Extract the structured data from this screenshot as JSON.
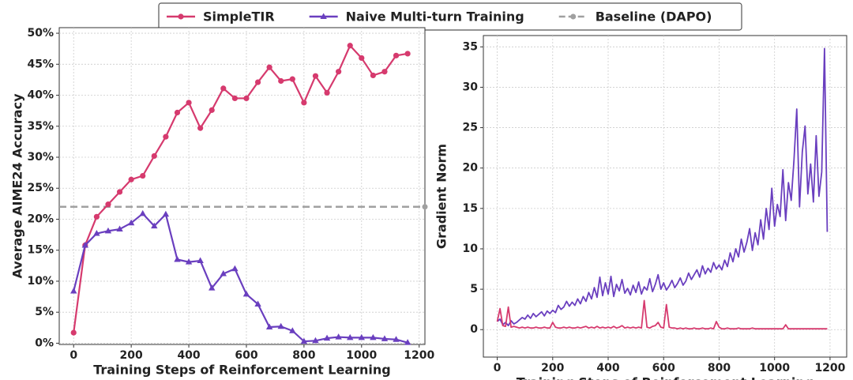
{
  "chart_data": [
    {
      "type": "line",
      "xlabel": "Training Steps of Reinforcement Learning",
      "ylabel": "Average AIME24 Accuracy",
      "legend": "upper center",
      "grid": true,
      "x": [
        0,
        40,
        80,
        120,
        160,
        200,
        240,
        280,
        320,
        360,
        400,
        440,
        480,
        520,
        560,
        600,
        640,
        680,
        720,
        760,
        800,
        840,
        880,
        920,
        960,
        1000,
        1040,
        1080,
        1120,
        1160
      ],
      "series": [
        {
          "name": "SimpleTIR",
          "color": "#d63a6e",
          "marker": "circle",
          "values": [
            1.7,
            15.8,
            20.4,
            22.4,
            24.4,
            26.4,
            27.0,
            30.2,
            33.3,
            37.2,
            38.8,
            34.7,
            37.6,
            41.1,
            39.5,
            39.5,
            42.1,
            44.5,
            42.3,
            42.6,
            38.8,
            43.1,
            40.4,
            43.8,
            48.0,
            46.0,
            43.2,
            43.8,
            46.4,
            46.7
          ]
        },
        {
          "name": "Naive Multi-turn Training",
          "color": "#6a3fbf",
          "marker": "triangle",
          "values": [
            8.4,
            15.8,
            17.7,
            18.1,
            18.4,
            19.4,
            20.9,
            18.9,
            20.8,
            13.5,
            13.1,
            13.3,
            8.9,
            11.2,
            12.0,
            7.9,
            6.3,
            2.6,
            2.7,
            2.0,
            0.3,
            0.4,
            0.8,
            1.0,
            0.9,
            0.9,
            0.9,
            0.7,
            0.6,
            0.1
          ]
        }
      ],
      "baseline": {
        "name": "Baseline (DAPO)",
        "color": "#a0a0a0",
        "value": 22
      },
      "xlim": [
        -50,
        1220
      ],
      "xticks": [
        0,
        200,
        400,
        600,
        800,
        1000,
        1200
      ],
      "ylim": [
        -0.2,
        50.9
      ],
      "yticks": [
        {
          "value": 0,
          "label": "0%"
        },
        {
          "value": 5,
          "label": "5%"
        },
        {
          "value": 10,
          "label": "10%"
        },
        {
          "value": 15,
          "label": "15%"
        },
        {
          "value": 20,
          "label": "20%"
        },
        {
          "value": 25,
          "label": "25%"
        },
        {
          "value": 30,
          "label": "30%"
        },
        {
          "value": 35,
          "label": "35%"
        },
        {
          "value": 40,
          "label": "40%"
        },
        {
          "value": 45,
          "label": "45%"
        },
        {
          "value": 50,
          "label": "50%"
        }
      ]
    },
    {
      "type": "line",
      "xlabel": "Training Steps of Reinforcement Learning",
      "ylabel": "Gradient Norm",
      "grid": true,
      "x": [
        0,
        10,
        20,
        30,
        40,
        50,
        60,
        70,
        80,
        90,
        100,
        110,
        120,
        130,
        140,
        150,
        160,
        170,
        180,
        190,
        200,
        210,
        220,
        230,
        240,
        250,
        260,
        270,
        280,
        290,
        300,
        310,
        320,
        330,
        340,
        350,
        360,
        370,
        380,
        390,
        400,
        410,
        420,
        430,
        440,
        450,
        460,
        470,
        480,
        490,
        500,
        510,
        520,
        530,
        540,
        550,
        560,
        570,
        580,
        590,
        600,
        610,
        620,
        630,
        640,
        650,
        660,
        670,
        680,
        690,
        700,
        710,
        720,
        730,
        740,
        750,
        760,
        770,
        780,
        790,
        800,
        810,
        820,
        830,
        840,
        850,
        860,
        870,
        880,
        890,
        900,
        910,
        920,
        930,
        940,
        950,
        960,
        970,
        980,
        990,
        1000,
        1010,
        1020,
        1030,
        1040,
        1050,
        1060,
        1070,
        1080,
        1090,
        1100,
        1110,
        1120,
        1130,
        1140,
        1150,
        1160,
        1170,
        1180,
        1190
      ],
      "series": [
        {
          "name": "Naive Multi-turn Training",
          "color": "#6a3fbf",
          "values": [
            1.0,
            1.3,
            0.6,
            0.9,
            0.5,
            1.1,
            0.7,
            0.9,
            1.2,
            1.5,
            1.3,
            1.8,
            1.4,
            2.0,
            1.6,
            1.9,
            2.2,
            1.7,
            2.3,
            2.0,
            2.4,
            2.1,
            3.0,
            2.5,
            2.8,
            3.5,
            2.9,
            3.4,
            3.0,
            3.8,
            3.2,
            4.1,
            3.5,
            4.6,
            3.8,
            5.2,
            4.0,
            6.5,
            4.2,
            5.8,
            4.4,
            6.6,
            4.1,
            5.6,
            4.8,
            6.2,
            4.5,
            5.1,
            4.3,
            5.5,
            4.6,
            5.9,
            4.4,
            5.3,
            4.9,
            6.3,
            4.7,
            5.6,
            6.8,
            5.0,
            5.8,
            4.9,
            5.4,
            6.1,
            5.2,
            5.7,
            6.4,
            5.5,
            6.0,
            7.0,
            6.2,
            6.8,
            7.4,
            6.5,
            7.9,
            6.9,
            7.6,
            7.1,
            8.3,
            7.5,
            8.0,
            7.4,
            8.6,
            7.8,
            9.5,
            8.4,
            10.0,
            9.0,
            11.2,
            9.6,
            10.8,
            12.5,
            9.8,
            12.0,
            10.5,
            13.6,
            11.2,
            15.0,
            12.4,
            17.5,
            12.8,
            15.5,
            14.0,
            19.8,
            13.5,
            18.2,
            16.0,
            21.0,
            27.3,
            15.2,
            22.0,
            25.2,
            16.8,
            20.5,
            15.8,
            24.0,
            16.5,
            19.5,
            34.8,
            12.1
          ]
        },
        {
          "name": "SimpleTIR",
          "color": "#d63a6e",
          "values": [
            1.0,
            2.6,
            0.5,
            0.4,
            2.8,
            0.3,
            0.4,
            0.3,
            0.2,
            0.3,
            0.2,
            0.3,
            0.2,
            0.2,
            0.3,
            0.2,
            0.2,
            0.3,
            0.2,
            0.2,
            0.9,
            0.3,
            0.2,
            0.2,
            0.3,
            0.2,
            0.3,
            0.2,
            0.2,
            0.3,
            0.2,
            0.3,
            0.4,
            0.2,
            0.3,
            0.2,
            0.4,
            0.2,
            0.3,
            0.2,
            0.3,
            0.2,
            0.4,
            0.2,
            0.3,
            0.5,
            0.2,
            0.3,
            0.2,
            0.3,
            0.2,
            0.3,
            0.2,
            3.6,
            0.3,
            0.2,
            0.4,
            0.5,
            0.9,
            0.3,
            0.2,
            3.1,
            0.3,
            0.2,
            0.2,
            0.1,
            0.2,
            0.1,
            0.2,
            0.1,
            0.1,
            0.2,
            0.1,
            0.1,
            0.2,
            0.1,
            0.1,
            0.2,
            0.1,
            1.0,
            0.3,
            0.1,
            0.1,
            0.2,
            0.1,
            0.1,
            0.1,
            0.2,
            0.1,
            0.1,
            0.1,
            0.1,
            0.2,
            0.1,
            0.1,
            0.1,
            0.1,
            0.1,
            0.1,
            0.1,
            0.1,
            0.1,
            0.1,
            0.1,
            0.6,
            0.1,
            0.1,
            0.1,
            0.1,
            0.1,
            0.1,
            0.1,
            0.1,
            0.1,
            0.1,
            0.1,
            0.1,
            0.1,
            0.1,
            0.1
          ]
        }
      ],
      "xlim": [
        -50,
        1260
      ],
      "xticks": [
        0,
        200,
        400,
        600,
        800,
        1000,
        1200
      ],
      "ylim": [
        -3.4,
        36.4
      ],
      "yticks": [
        0,
        5,
        10,
        15,
        20,
        25,
        30,
        35
      ]
    }
  ]
}
